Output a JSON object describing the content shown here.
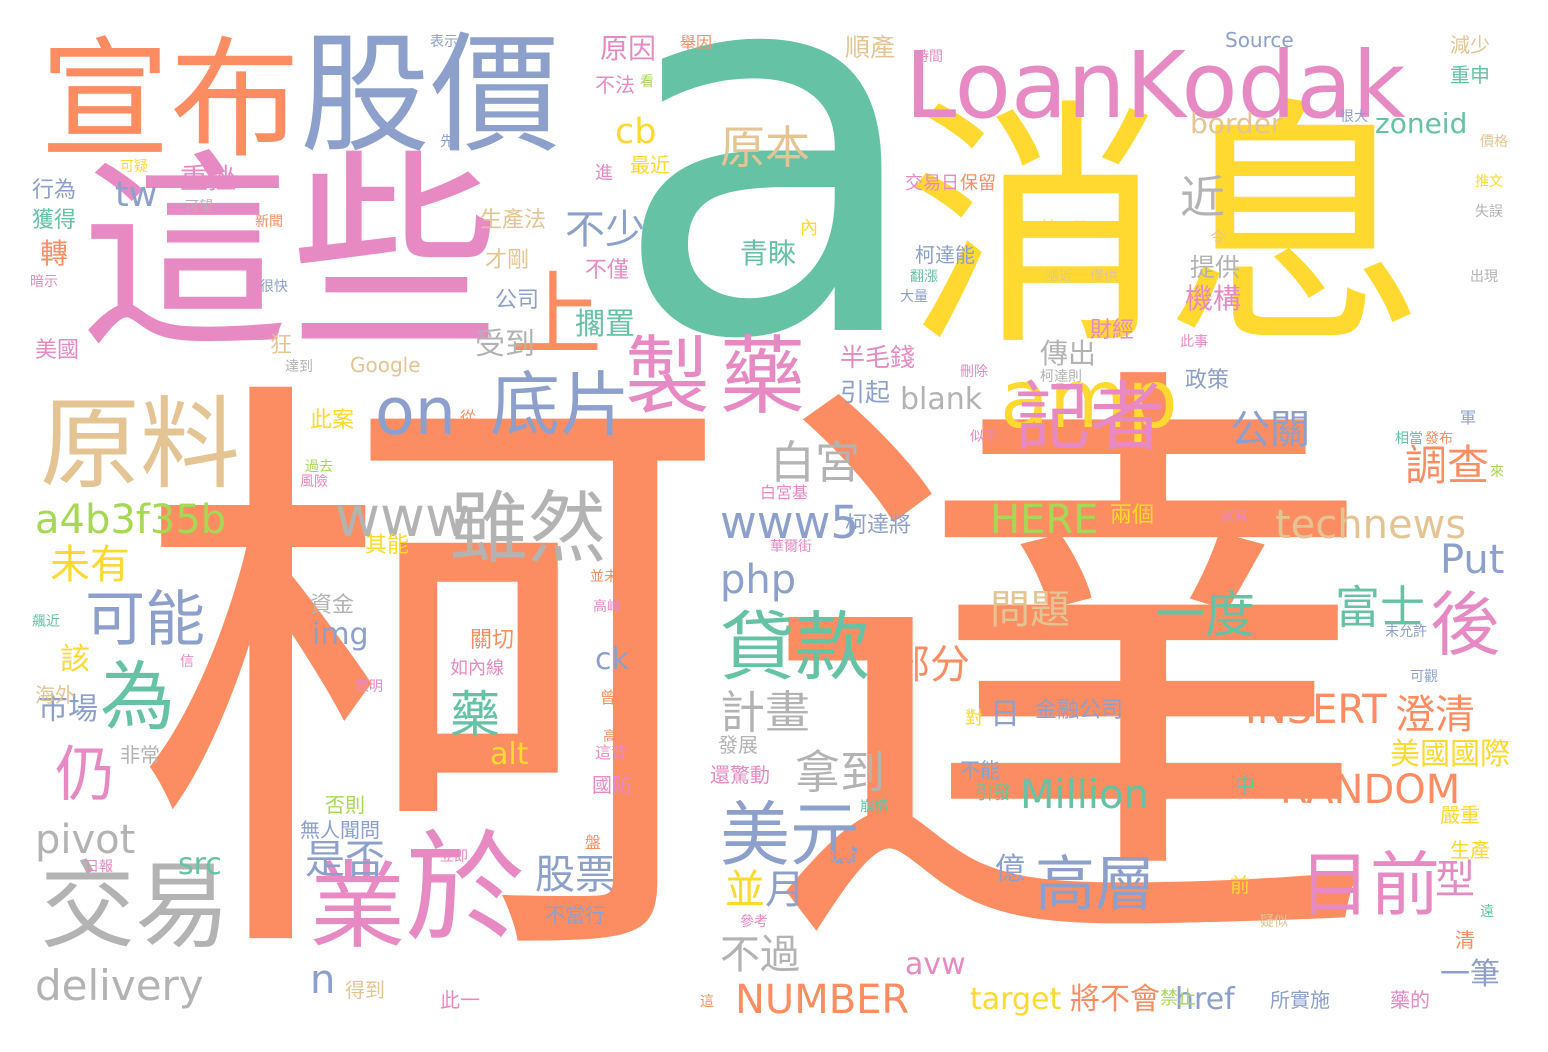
{
  "palette": {
    "teal": "#66c2a5",
    "orange": "#fc8d62",
    "blue": "#8da0cb",
    "pink": "#e78ac3",
    "lime": "#a6d854",
    "yellow": "#ffd92f",
    "tan": "#e5c494",
    "gray": "#b3b3b3",
    "background": "#ffffff"
  },
  "words": [
    {
      "text": "柯",
      "color": "orange"
    },
    {
      "text": "達",
      "color": "orange"
    },
    {
      "text": "a",
      "color": "teal"
    },
    {
      "text": "消息",
      "color": "yellow"
    },
    {
      "text": "這些",
      "color": "pink"
    },
    {
      "text": "宣布",
      "color": "orange"
    },
    {
      "text": "股價",
      "color": "blue"
    },
    {
      "text": "LoanKodak",
      "color": "pink"
    },
    {
      "text": "原料",
      "color": "tan"
    },
    {
      "text": "上",
      "color": "orange"
    },
    {
      "text": "製",
      "color": "pink"
    },
    {
      "text": "藥",
      "color": "pink"
    },
    {
      "text": "底片",
      "color": "blue"
    },
    {
      "text": "on",
      "color": "blue"
    },
    {
      "text": "amp",
      "color": "yellow"
    },
    {
      "text": "記者",
      "color": "pink"
    },
    {
      "text": "交易",
      "color": "gray"
    },
    {
      "text": "於",
      "color": "pink"
    },
    {
      "text": "業",
      "color": "pink"
    },
    {
      "text": "美元",
      "color": "blue"
    },
    {
      "text": "貸款",
      "color": "teal"
    },
    {
      "text": "雖然",
      "color": "gray"
    },
    {
      "text": "www",
      "color": "gray"
    },
    {
      "text": "www5",
      "color": "blue"
    },
    {
      "text": "目前",
      "color": "pink"
    },
    {
      "text": "高層",
      "color": "blue"
    },
    {
      "text": "可能",
      "color": "blue"
    },
    {
      "text": "為",
      "color": "teal"
    },
    {
      "text": "後",
      "color": "pink"
    },
    {
      "text": "仍",
      "color": "pink"
    },
    {
      "text": "白宮",
      "color": "gray"
    },
    {
      "text": "不少",
      "color": "blue"
    },
    {
      "text": "原本",
      "color": "tan"
    },
    {
      "text": "近",
      "color": "gray"
    },
    {
      "text": "technews",
      "color": "tan"
    },
    {
      "text": "a4b3f35b",
      "color": "lime"
    },
    {
      "text": "delivery",
      "color": "gray"
    },
    {
      "text": "pivot",
      "color": "gray"
    },
    {
      "text": "一度",
      "color": "teal"
    },
    {
      "text": "富士",
      "color": "teal"
    },
    {
      "text": "調查",
      "color": "orange"
    },
    {
      "text": "公關",
      "color": "blue"
    },
    {
      "text": "HERE",
      "color": "lime"
    },
    {
      "text": "計畫",
      "color": "gray"
    },
    {
      "text": "拿到",
      "color": "gray"
    },
    {
      "text": "藥",
      "color": "teal"
    },
    {
      "text": "股票",
      "color": "blue"
    },
    {
      "text": "是否",
      "color": "blue"
    },
    {
      "text": "不過",
      "color": "gray"
    },
    {
      "text": "NUMBER",
      "color": "orange"
    },
    {
      "text": "Million",
      "color": "teal"
    },
    {
      "text": "INSERT",
      "color": "orange"
    },
    {
      "text": "RANDOM",
      "color": "orange"
    },
    {
      "text": "部分",
      "color": "orange"
    },
    {
      "text": "問題",
      "color": "tan"
    },
    {
      "text": "php",
      "color": "blue"
    },
    {
      "text": "型",
      "color": "pink"
    },
    {
      "text": "並",
      "color": "yellow"
    },
    {
      "text": "月",
      "color": "blue"
    },
    {
      "text": "n",
      "color": "blue"
    },
    {
      "text": "未有",
      "color": "yellow"
    },
    {
      "text": "澄清",
      "color": "orange"
    },
    {
      "text": "Put",
      "color": "blue"
    },
    {
      "text": "cb",
      "color": "yellow"
    },
    {
      "text": "tw",
      "color": "blue"
    },
    {
      "text": "重挫",
      "color": "pink"
    },
    {
      "text": "擱置",
      "color": "teal"
    },
    {
      "text": "受到",
      "color": "gray"
    },
    {
      "text": "原因",
      "color": "pink"
    },
    {
      "text": "青睞",
      "color": "teal"
    },
    {
      "text": "傳出",
      "color": "gray"
    },
    {
      "text": "機構",
      "color": "pink"
    },
    {
      "text": "提供",
      "color": "gray"
    },
    {
      "text": "blank",
      "color": "gray"
    },
    {
      "text": "border",
      "color": "tan"
    },
    {
      "text": "zoneid",
      "color": "teal"
    },
    {
      "text": "Source",
      "color": "blue"
    },
    {
      "text": "順產",
      "color": "tan"
    },
    {
      "text": "市場",
      "color": "blue"
    },
    {
      "text": "該",
      "color": "yellow"
    },
    {
      "text": "img",
      "color": "blue"
    },
    {
      "text": "ck",
      "color": "blue"
    },
    {
      "text": "alt",
      "color": "yellow"
    },
    {
      "text": "src",
      "color": "teal"
    },
    {
      "text": "avw",
      "color": "pink"
    },
    {
      "text": "target",
      "color": "yellow"
    },
    {
      "text": "href",
      "color": "blue"
    },
    {
      "text": "將不會",
      "color": "orange"
    },
    {
      "text": "一筆",
      "color": "blue"
    },
    {
      "text": "美國國際",
      "color": "yellow"
    },
    {
      "text": "金融公司",
      "color": "blue"
    },
    {
      "text": "日",
      "color": "blue"
    },
    {
      "text": "億",
      "color": "blue"
    },
    {
      "text": "半毛錢",
      "color": "pink"
    },
    {
      "text": "引起",
      "color": "blue"
    },
    {
      "text": "財經",
      "color": "pink"
    },
    {
      "text": "政策",
      "color": "blue"
    },
    {
      "text": "柯達能",
      "color": "blue"
    },
    {
      "text": "柯達將",
      "color": "blue"
    },
    {
      "text": "兩個",
      "color": "yellow"
    },
    {
      "text": "資金",
      "color": "gray"
    },
    {
      "text": "其能",
      "color": "yellow"
    },
    {
      "text": "此案",
      "color": "yellow"
    },
    {
      "text": "生產法",
      "color": "tan"
    },
    {
      "text": "才剛",
      "color": "tan"
    },
    {
      "text": "公司",
      "color": "blue"
    },
    {
      "text": "不僅",
      "color": "pink"
    },
    {
      "text": "Google",
      "color": "tan"
    },
    {
      "text": "行為",
      "color": "blue"
    },
    {
      "text": "獲得",
      "color": "teal"
    },
    {
      "text": "轉",
      "color": "orange"
    },
    {
      "text": "美國",
      "color": "pink"
    },
    {
      "text": "狂",
      "color": "tan"
    },
    {
      "text": "海外",
      "color": "tan"
    },
    {
      "text": "非常",
      "color": "gray"
    },
    {
      "text": "無人聞問",
      "color": "blue"
    },
    {
      "text": "否則",
      "color": "lime"
    },
    {
      "text": "得到",
      "color": "tan"
    },
    {
      "text": "此一",
      "color": "pink"
    },
    {
      "text": "所實施",
      "color": "blue"
    },
    {
      "text": "禁止",
      "color": "lime"
    },
    {
      "text": "藥的",
      "color": "pink"
    },
    {
      "text": "前",
      "color": "yellow"
    },
    {
      "text": "生產",
      "color": "yellow"
    },
    {
      "text": "嚴重",
      "color": "yellow"
    },
    {
      "text": "中",
      "color": "teal"
    },
    {
      "text": "清",
      "color": "orange"
    },
    {
      "text": "依賴",
      "color": "orange"
    },
    {
      "text": "不當行",
      "color": "blue"
    },
    {
      "text": "國防",
      "color": "pink"
    },
    {
      "text": "還驚動",
      "color": "pink"
    },
    {
      "text": "發展",
      "color": "gray"
    },
    {
      "text": "不能",
      "color": "blue"
    },
    {
      "text": "引發",
      "color": "teal"
    },
    {
      "text": "減少",
      "color": "tan"
    },
    {
      "text": "重申",
      "color": "teal"
    },
    {
      "text": "最近",
      "color": "yellow"
    },
    {
      "text": "不法",
      "color": "pink"
    },
    {
      "text": "交易日",
      "color": "pink"
    },
    {
      "text": "保留",
      "color": "orange"
    },
    {
      "text": "關切",
      "color": "orange"
    },
    {
      "text": "如內線",
      "color": "pink"
    },
    {
      "text": "表示",
      "color": "blue"
    },
    {
      "text": "舉因",
      "color": "orange"
    },
    {
      "text": "時間",
      "color": "pink"
    },
    {
      "text": "很大",
      "color": "blue"
    },
    {
      "text": "價格",
      "color": "tan"
    },
    {
      "text": "推文",
      "color": "yellow"
    },
    {
      "text": "失誤",
      "color": "gray"
    },
    {
      "text": "出現",
      "color": "gray"
    },
    {
      "text": "前一天",
      "color": "yellow"
    },
    {
      "text": "漲近",
      "color": "tan"
    },
    {
      "text": "僅供",
      "color": "tan"
    },
    {
      "text": "令",
      "color": "tan"
    },
    {
      "text": "翻漲",
      "color": "teal"
    },
    {
      "text": "大量",
      "color": "blue"
    },
    {
      "text": "內",
      "color": "yellow"
    },
    {
      "text": "進",
      "color": "pink"
    },
    {
      "text": "可疑",
      "color": "yellow"
    },
    {
      "text": "新聞",
      "color": "orange"
    },
    {
      "text": "可望",
      "color": "gray"
    },
    {
      "text": "先",
      "color": "blue"
    },
    {
      "text": "看",
      "color": "lime"
    },
    {
      "text": "暗示",
      "color": "pink"
    },
    {
      "text": "很快",
      "color": "blue"
    },
    {
      "text": "達到",
      "color": "gray"
    },
    {
      "text": "刪除",
      "color": "pink"
    },
    {
      "text": "柯達則",
      "color": "gray"
    },
    {
      "text": "此事",
      "color": "pink"
    },
    {
      "text": "似乎",
      "color": "pink"
    },
    {
      "text": "從",
      "color": "orange"
    },
    {
      "text": "過去",
      "color": "lime"
    },
    {
      "text": "風險",
      "color": "pink"
    },
    {
      "text": "白宮基",
      "color": "pink"
    },
    {
      "text": "華爾街",
      "color": "pink"
    },
    {
      "text": "並未",
      "color": "orange"
    },
    {
      "text": "高峰",
      "color": "pink"
    },
    {
      "text": "未允許",
      "color": "blue"
    },
    {
      "text": "可觀",
      "color": "blue"
    },
    {
      "text": "軍",
      "color": "blue"
    },
    {
      "text": "發布",
      "color": "orange"
    },
    {
      "text": "相當",
      "color": "teal"
    },
    {
      "text": "來",
      "color": "lime"
    },
    {
      "text": "還有",
      "color": "pink"
    },
    {
      "text": "飆近",
      "color": "teal"
    },
    {
      "text": "信",
      "color": "pink"
    },
    {
      "text": "表明",
      "color": "pink"
    },
    {
      "text": "曾",
      "color": "orange"
    },
    {
      "text": "高股",
      "color": "orange"
    },
    {
      "text": "這背",
      "color": "pink"
    },
    {
      "text": "盤",
      "color": "orange"
    },
    {
      "text": "崩構",
      "color": "teal"
    },
    {
      "text": "對",
      "color": "yellow"
    },
    {
      "text": "立即",
      "color": "pink"
    },
    {
      "text": "日報",
      "color": "pink"
    },
    {
      "text": "參考",
      "color": "pink"
    },
    {
      "text": "這",
      "color": "orange"
    },
    {
      "text": "疑似",
      "color": "tan"
    },
    {
      "text": "遠",
      "color": "teal"
    }
  ]
}
